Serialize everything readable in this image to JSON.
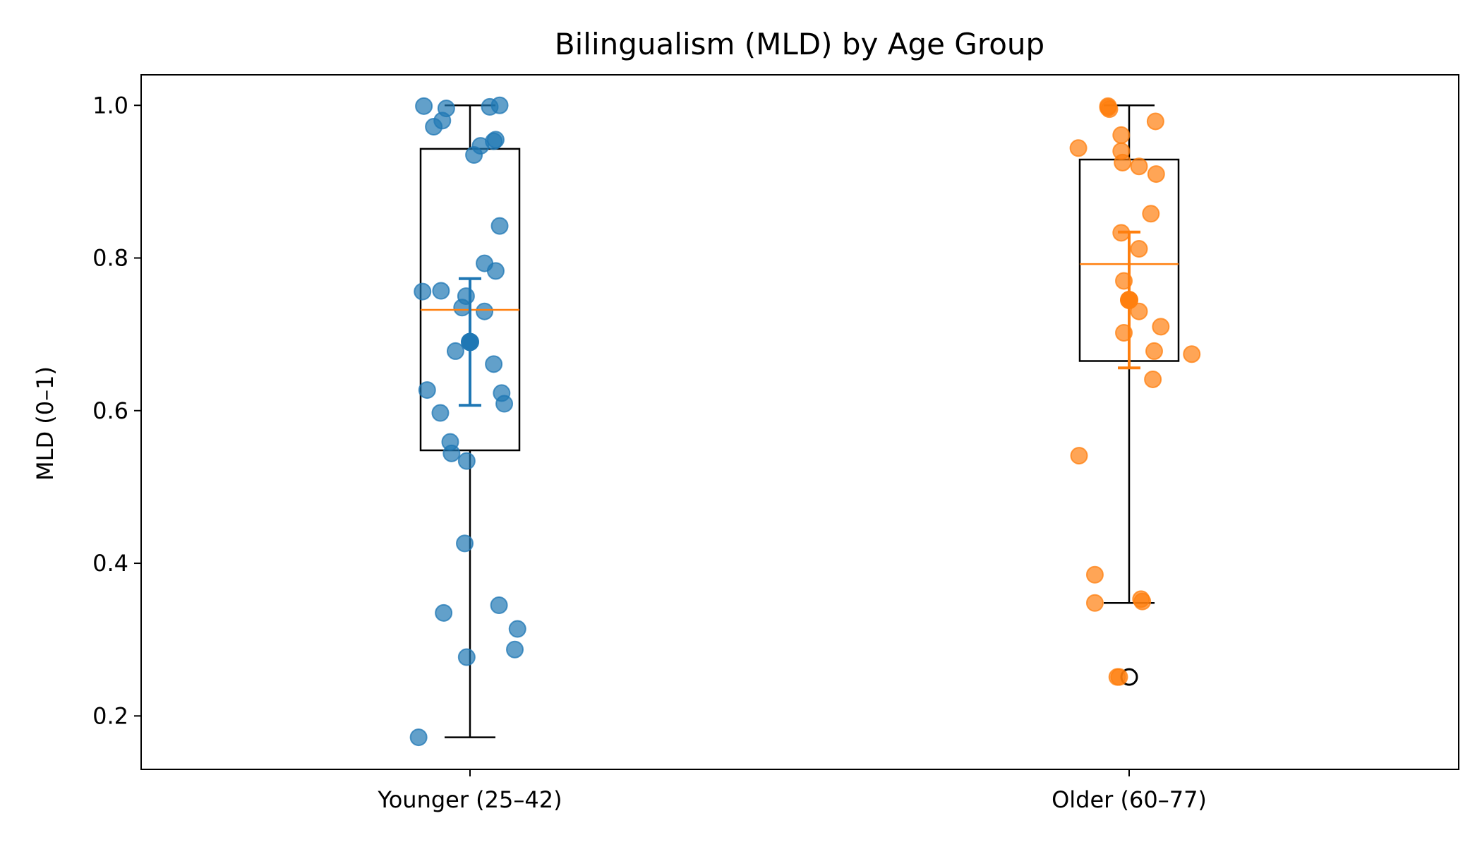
{
  "chart_data": {
    "type": "box",
    "title": "Bilingualism (MLD) by Age Group",
    "xlabel": "",
    "ylabel": "MLD (0–1)",
    "ylim": [
      0.13,
      1.04
    ],
    "yticks": [
      "0.2",
      "0.4",
      "0.6",
      "0.8",
      "1.0"
    ],
    "categories": [
      "Younger (25–42)",
      "Older (60–77)"
    ],
    "colors": {
      "box": "#000000",
      "median": "#ff7f0e",
      "mean_marker": "#2ca02c"
    },
    "groups": [
      {
        "category": "Younger (25–42)",
        "color": "#1f77b4",
        "box": {
          "whislo": 0.172,
          "q1": 0.548,
          "median": 0.732,
          "q3": 0.943,
          "whishi": 1.0
        },
        "mean": 0.69,
        "ci": [
          0.607,
          0.773
        ],
        "fliers": [],
        "points": [
          {
            "x": -0.07,
            "y": 0.999
          },
          {
            "x": -0.036,
            "y": 0.996
          },
          {
            "x": 0.03,
            "y": 0.998
          },
          {
            "x": 0.045,
            "y": 1.0
          },
          {
            "x": -0.055,
            "y": 0.972
          },
          {
            "x": -0.042,
            "y": 0.98
          },
          {
            "x": 0.016,
            "y": 0.947
          },
          {
            "x": 0.036,
            "y": 0.953
          },
          {
            "x": 0.039,
            "y": 0.955
          },
          {
            "x": 0.006,
            "y": 0.935
          },
          {
            "x": 0.045,
            "y": 0.842
          },
          {
            "x": 0.022,
            "y": 0.793
          },
          {
            "x": 0.039,
            "y": 0.783
          },
          {
            "x": -0.072,
            "y": 0.756
          },
          {
            "x": -0.044,
            "y": 0.757
          },
          {
            "x": -0.006,
            "y": 0.75
          },
          {
            "x": -0.012,
            "y": 0.735
          },
          {
            "x": 0.022,
            "y": 0.73
          },
          {
            "x": -0.022,
            "y": 0.678
          },
          {
            "x": 0.036,
            "y": 0.661
          },
          {
            "x": -0.065,
            "y": 0.627
          },
          {
            "x": 0.048,
            "y": 0.623
          },
          {
            "x": 0.052,
            "y": 0.609
          },
          {
            "x": -0.045,
            "y": 0.597
          },
          {
            "x": -0.03,
            "y": 0.559
          },
          {
            "x": -0.028,
            "y": 0.544
          },
          {
            "x": -0.005,
            "y": 0.534
          },
          {
            "x": -0.008,
            "y": 0.426
          },
          {
            "x": 0.044,
            "y": 0.345
          },
          {
            "x": -0.04,
            "y": 0.335
          },
          {
            "x": 0.072,
            "y": 0.314
          },
          {
            "x": 0.068,
            "y": 0.287
          },
          {
            "x": -0.005,
            "y": 0.277
          },
          {
            "x": -0.078,
            "y": 0.172
          }
        ]
      },
      {
        "category": "Older (60–77)",
        "color": "#ff7f0e",
        "box": {
          "whislo": 0.348,
          "q1": 0.665,
          "median": 0.792,
          "q3": 0.929,
          "whishi": 1.0
        },
        "mean": 0.745,
        "ci": [
          0.656,
          0.834
        ],
        "fliers": [
          0.251
        ],
        "points": [
          {
            "x": -0.032,
            "y": 0.999
          },
          {
            "x": -0.03,
            "y": 0.995
          },
          {
            "x": 0.04,
            "y": 0.979
          },
          {
            "x": -0.032,
            "y": 0.997
          },
          {
            "x": -0.012,
            "y": 0.961
          },
          {
            "x": -0.077,
            "y": 0.944
          },
          {
            "x": -0.012,
            "y": 0.94
          },
          {
            "x": -0.01,
            "y": 0.925
          },
          {
            "x": 0.015,
            "y": 0.92
          },
          {
            "x": 0.041,
            "y": 0.91
          },
          {
            "x": 0.033,
            "y": 0.858
          },
          {
            "x": -0.012,
            "y": 0.833
          },
          {
            "x": 0.015,
            "y": 0.812
          },
          {
            "x": -0.008,
            "y": 0.77
          },
          {
            "x": 0.015,
            "y": 0.73
          },
          {
            "x": 0.048,
            "y": 0.71
          },
          {
            "x": -0.008,
            "y": 0.702
          },
          {
            "x": 0.038,
            "y": 0.678
          },
          {
            "x": 0.095,
            "y": 0.674
          },
          {
            "x": 0.036,
            "y": 0.641
          },
          {
            "x": -0.076,
            "y": 0.541
          },
          {
            "x": -0.052,
            "y": 0.385
          },
          {
            "x": -0.052,
            "y": 0.348
          },
          {
            "x": 0.018,
            "y": 0.353
          },
          {
            "x": 0.02,
            "y": 0.35
          },
          {
            "x": -0.018,
            "y": 0.251
          },
          {
            "x": -0.015,
            "y": 0.251
          }
        ]
      }
    ]
  }
}
